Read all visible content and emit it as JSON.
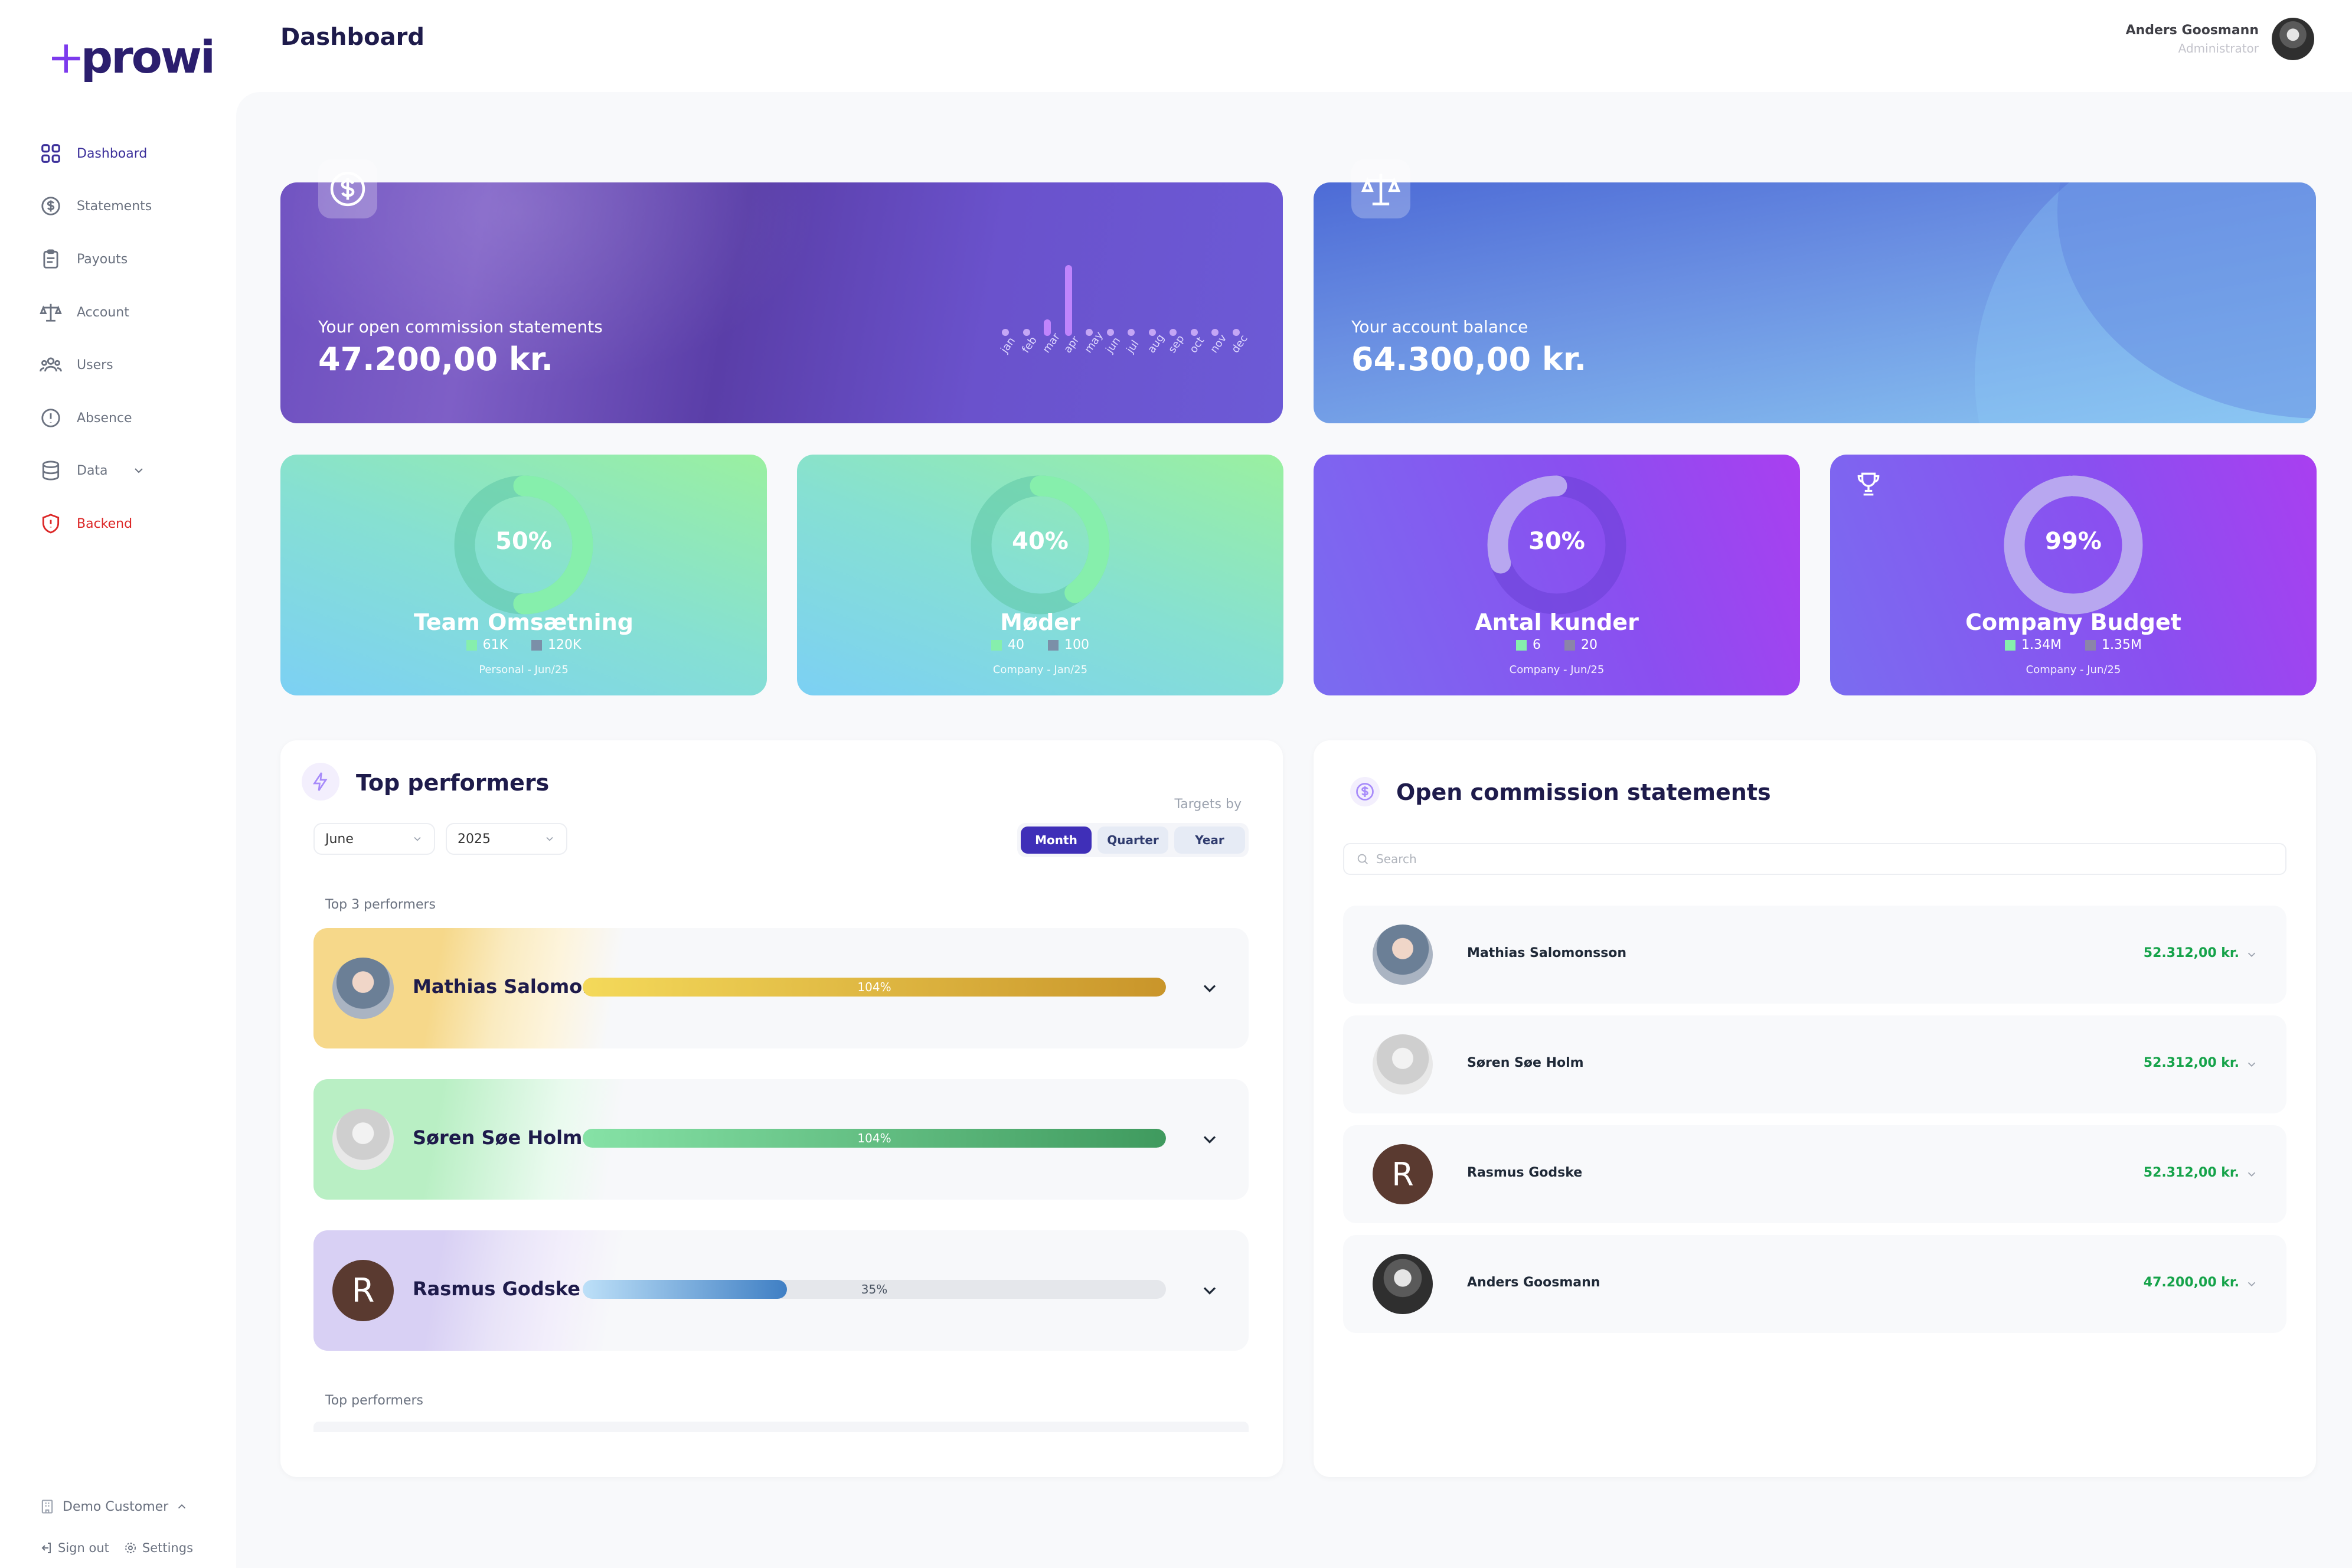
{
  "app": {
    "logo": "prowi",
    "page_title": "Dashboard"
  },
  "user": {
    "name": "Anders Goosmann",
    "role": "Administrator"
  },
  "sidebar": {
    "items": [
      {
        "label": "Dashboard",
        "icon": "grid-icon"
      },
      {
        "label": "Statements",
        "icon": "dollar-circle-icon"
      },
      {
        "label": "Payouts",
        "icon": "clipboard-icon"
      },
      {
        "label": "Account",
        "icon": "scale-icon"
      },
      {
        "label": "Users",
        "icon": "users-icon"
      },
      {
        "label": "Absence",
        "icon": "alert-circle-icon"
      },
      {
        "label": "Data",
        "icon": "database-icon"
      },
      {
        "label": "Backend",
        "icon": "shield-icon"
      }
    ],
    "customer": "Demo Customer",
    "sign_out": "Sign out",
    "settings": "Settings"
  },
  "hero": {
    "commission": {
      "label": "Your open commission statements",
      "value": "47.200,00 kr.",
      "chart_data": {
        "type": "bar",
        "categories": [
          "jan",
          "feb",
          "mar",
          "apr",
          "may",
          "jun",
          "jul",
          "aug",
          "sep",
          "oct",
          "nov",
          "dec"
        ],
        "values": [
          0,
          0,
          9000,
          38200,
          0,
          0,
          0,
          0,
          0,
          0,
          0,
          0
        ]
      }
    },
    "balance": {
      "label": "Your account balance",
      "value": "64.300,00 kr."
    }
  },
  "stats": [
    {
      "percent": "50%",
      "fraction": 0.5,
      "title": "Team Omsætning",
      "legend_a": "61K",
      "legend_b": "120K",
      "sub": "Personal - Jun/25",
      "ring_fill": "#86efac",
      "ring_track": "#5fc6a5"
    },
    {
      "percent": "40%",
      "fraction": 0.4,
      "title": "Møder",
      "legend_a": "40",
      "legend_b": "100",
      "sub": "Company - Jan/25",
      "ring_fill": "#86efac",
      "ring_track": "#5fc6a5"
    },
    {
      "percent": "30%",
      "fraction": 0.3,
      "title": "Antal kunder",
      "legend_a": "6",
      "legend_b": "20",
      "sub": "Company - Jun/25",
      "ring_fill": "#b8a7f0",
      "ring_track": "#6a3fd6"
    },
    {
      "percent": "99%",
      "fraction": 0.99,
      "title": "Company Budget",
      "legend_a": "1.34M",
      "legend_b": "1.35M",
      "sub": "Company - Jun/25",
      "ring_fill": "#b8a7f0",
      "ring_track": "#6a3fd6"
    }
  ],
  "top_performers": {
    "title": "Top performers",
    "month": "June",
    "year": "2025",
    "targets_by": "Targets by",
    "periods": [
      "Month",
      "Quarter",
      "Year"
    ],
    "active_period": "Month",
    "top3_label": "Top 3 performers",
    "bottom_label": "Top performers",
    "rows": [
      {
        "name": "Mathias Salomo...",
        "percent": "104%",
        "fraction": 1.0,
        "avatar": ""
      },
      {
        "name": "Søren Søe Holm",
        "percent": "104%",
        "fraction": 1.0,
        "avatar": ""
      },
      {
        "name": "Rasmus Godske",
        "percent": "35%",
        "fraction": 0.35,
        "avatar": "R"
      }
    ]
  },
  "open_commission": {
    "title": "Open commission statements",
    "search_placeholder": "Search",
    "rows": [
      {
        "name": "Mathias Salomonsson",
        "amount": "52.312,00 kr.",
        "avatar": ""
      },
      {
        "name": "Søren Søe Holm",
        "amount": "52.312,00 kr.",
        "avatar": ""
      },
      {
        "name": "Rasmus Godske",
        "amount": "52.312,00 kr.",
        "avatar": "R"
      },
      {
        "name": "Anders Goosmann",
        "amount": "47.200,00 kr.",
        "avatar": ""
      }
    ]
  }
}
